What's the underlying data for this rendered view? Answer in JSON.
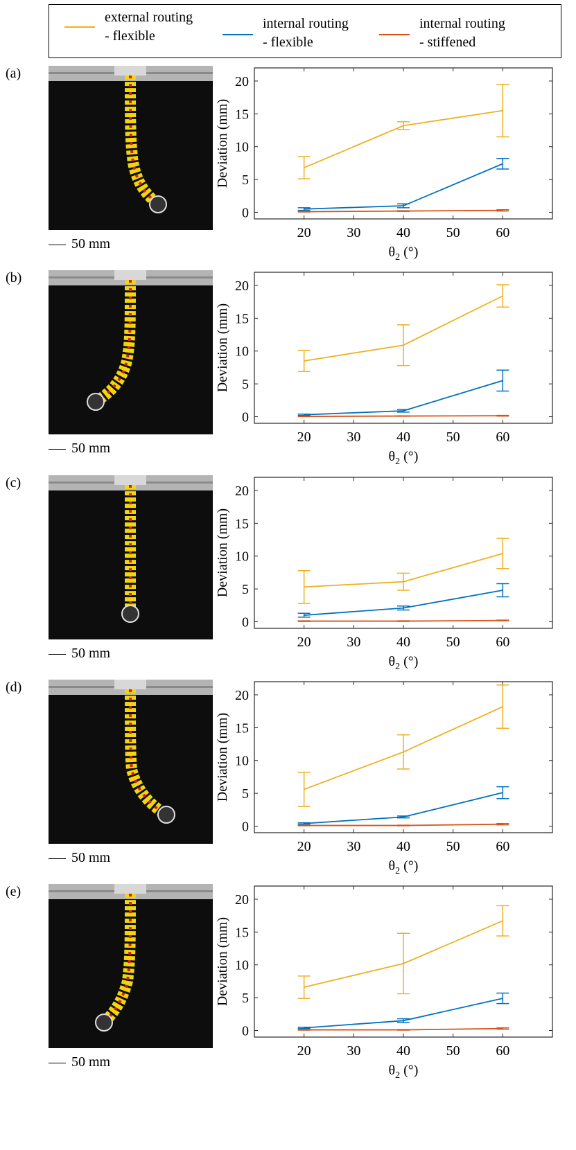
{
  "legend": {
    "items": [
      {
        "label": "external routing\n- flexible",
        "color": "#EDB120"
      },
      {
        "label": "internal routing\n- flexible",
        "color": "#0072BD"
      },
      {
        "label": "internal routing\n- stiffened",
        "color": "#D95319"
      }
    ]
  },
  "scale_label": "50 mm",
  "colors": {
    "external_flexible": "#EDB120",
    "internal_flexible": "#0072BD",
    "internal_stiffened": "#D95319"
  },
  "chart_data": [
    {
      "panel": "(a)",
      "type": "line",
      "xlabel": "θ2 (°)",
      "ylabel": "Deviation (mm)",
      "xlim": [
        10,
        70
      ],
      "ylim": [
        -1,
        22
      ],
      "xticks": [
        20,
        30,
        40,
        50,
        60
      ],
      "yticks": [
        0,
        5,
        10,
        15,
        20
      ],
      "x": [
        20,
        40,
        60
      ],
      "series": [
        {
          "name": "external routing - flexible",
          "values": [
            6.8,
            13.2,
            15.5
          ],
          "err": [
            1.7,
            0.6,
            4.0
          ]
        },
        {
          "name": "internal routing - flexible",
          "values": [
            0.5,
            1.0,
            7.4
          ],
          "err": [
            0.2,
            0.3,
            0.8
          ]
        },
        {
          "name": "internal routing - stiffened",
          "values": [
            0.1,
            0.2,
            0.3
          ],
          "err": [
            0.05,
            0.05,
            0.1
          ]
        }
      ]
    },
    {
      "panel": "(b)",
      "type": "line",
      "xlabel": "θ2 (°)",
      "ylabel": "Deviation (mm)",
      "xlim": [
        10,
        70
      ],
      "ylim": [
        -1,
        22
      ],
      "xticks": [
        20,
        30,
        40,
        50,
        60
      ],
      "yticks": [
        0,
        5,
        10,
        15,
        20
      ],
      "x": [
        20,
        40,
        60
      ],
      "series": [
        {
          "name": "external routing - flexible",
          "values": [
            8.5,
            10.9,
            18.4
          ],
          "err": [
            1.6,
            3.1,
            1.7
          ]
        },
        {
          "name": "internal routing - flexible",
          "values": [
            0.3,
            0.9,
            5.5
          ],
          "err": [
            0.1,
            0.2,
            1.6
          ]
        },
        {
          "name": "internal routing - stiffened",
          "values": [
            0.05,
            0.1,
            0.15
          ],
          "err": [
            0.03,
            0.03,
            0.05
          ]
        }
      ]
    },
    {
      "panel": "(c)",
      "type": "line",
      "xlabel": "θ2 (°)",
      "ylabel": "Deviation (mm)",
      "xlim": [
        10,
        70
      ],
      "ylim": [
        -1,
        22
      ],
      "xticks": [
        20,
        30,
        40,
        50,
        60
      ],
      "yticks": [
        0,
        5,
        10,
        15,
        20
      ],
      "x": [
        20,
        40,
        60
      ],
      "series": [
        {
          "name": "external routing - flexible",
          "values": [
            5.3,
            6.1,
            10.4
          ],
          "err": [
            2.5,
            1.3,
            2.3
          ]
        },
        {
          "name": "internal routing - flexible",
          "values": [
            1.0,
            2.1,
            4.8
          ],
          "err": [
            0.3,
            0.3,
            1.0
          ]
        },
        {
          "name": "internal routing - stiffened",
          "values": [
            0.1,
            0.1,
            0.2
          ],
          "err": [
            0.05,
            0.05,
            0.05
          ]
        }
      ]
    },
    {
      "panel": "(d)",
      "type": "line",
      "xlabel": "θ2 (°)",
      "ylabel": "Deviation (mm)",
      "xlim": [
        10,
        70
      ],
      "ylim": [
        -1,
        22
      ],
      "xticks": [
        20,
        30,
        40,
        50,
        60
      ],
      "yticks": [
        0,
        5,
        10,
        15,
        20
      ],
      "x": [
        20,
        40,
        60
      ],
      "series": [
        {
          "name": "external routing - flexible",
          "values": [
            5.6,
            11.3,
            18.2
          ],
          "err": [
            2.6,
            2.6,
            3.3
          ]
        },
        {
          "name": "internal routing - flexible",
          "values": [
            0.4,
            1.4,
            5.1
          ],
          "err": [
            0.1,
            0.15,
            0.9
          ]
        },
        {
          "name": "internal routing - stiffened",
          "values": [
            0.1,
            0.1,
            0.3
          ],
          "err": [
            0.05,
            0.05,
            0.1
          ]
        }
      ]
    },
    {
      "panel": "(e)",
      "type": "line",
      "xlabel": "θ2 (°)",
      "ylabel": "Deviation (mm)",
      "xlim": [
        10,
        70
      ],
      "ylim": [
        -1,
        22
      ],
      "xticks": [
        20,
        30,
        40,
        50,
        60
      ],
      "yticks": [
        0,
        5,
        10,
        15,
        20
      ],
      "x": [
        20,
        40,
        60
      ],
      "series": [
        {
          "name": "external routing - flexible",
          "values": [
            6.6,
            10.2,
            16.7
          ],
          "err": [
            1.7,
            4.6,
            2.3
          ]
        },
        {
          "name": "internal routing - flexible",
          "values": [
            0.4,
            1.5,
            4.9
          ],
          "err": [
            0.1,
            0.3,
            0.8
          ]
        },
        {
          "name": "internal routing - stiffened",
          "values": [
            0.1,
            0.1,
            0.3
          ],
          "err": [
            0.05,
            0.05,
            0.1
          ]
        }
      ]
    }
  ]
}
